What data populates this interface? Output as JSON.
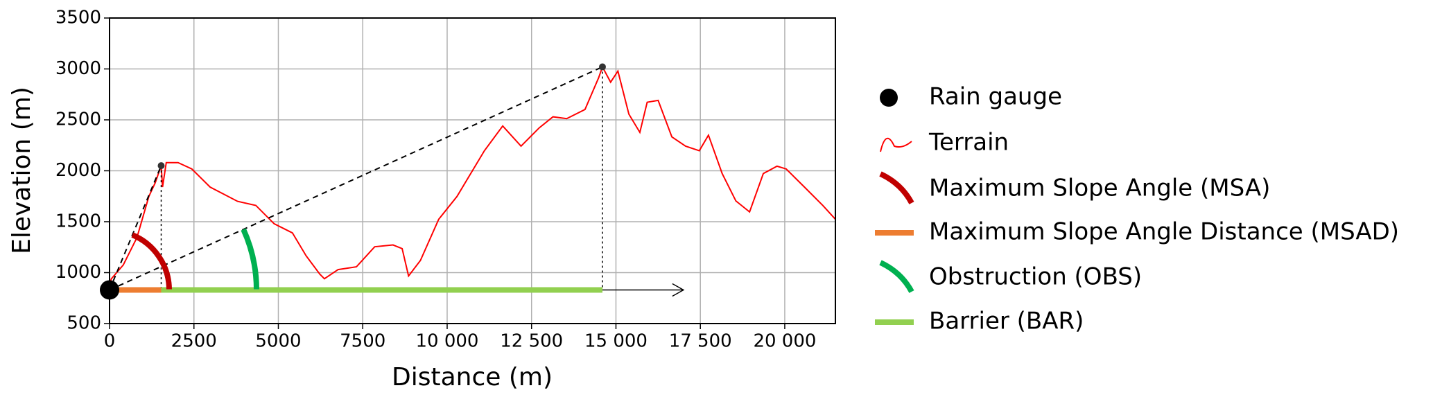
{
  "chart_data": {
    "type": "line",
    "xlabel": "Distance (m)",
    "ylabel": "Elevation (m)",
    "xlim": [
      0,
      21500
    ],
    "ylim": [
      500,
      3500
    ],
    "xticks": [
      0,
      2500,
      5000,
      7500,
      {
        "value": 10000,
        "label": "10 000"
      },
      {
        "value": 12500,
        "label": "12 500"
      },
      {
        "value": 15000,
        "label": "15 000"
      },
      {
        "value": 17500,
        "label": "17 500"
      },
      {
        "value": 20000,
        "label": "20 000"
      }
    ],
    "yticks": [
      500,
      1000,
      1500,
      2000,
      2500,
      3000,
      3500
    ],
    "grid": true,
    "legend": "right",
    "series": [
      {
        "name": "Terrain",
        "color": "#ff0000",
        "x": [
          0,
          54,
          406,
          812,
          1164,
          1354,
          1530,
          1570,
          1680,
          2030,
          2437,
          2979,
          3792,
          4333,
          4875,
          5417,
          5823,
          6229,
          6365,
          6770,
          7312,
          7854,
          8396,
          8667,
          8857,
          9209,
          9750,
          10292,
          10698,
          11104,
          11646,
          12188,
          12729,
          13135,
          13541,
          14083,
          14490,
          14600,
          14842,
          15058,
          15383,
          15708,
          15925,
          16250,
          16656,
          17063,
          17469,
          17740,
          18146,
          18552,
          18958,
          19365,
          19771,
          20042,
          20583,
          21125,
          21500
        ],
        "values": [
          880,
          940,
          1075,
          1344,
          1748,
          1883,
          2050,
          1840,
          2080,
          2080,
          2018,
          1840,
          1700,
          1660,
          1480,
          1390,
          1165,
          985,
          940,
          1030,
          1057,
          1254,
          1272,
          1236,
          967,
          1120,
          1524,
          1748,
          1973,
          2197,
          2440,
          2242,
          2422,
          2530,
          2512,
          2602,
          2916,
          3020,
          2870,
          2979,
          2556,
          2377,
          2673,
          2691,
          2333,
          2242,
          2197,
          2350,
          1973,
          1704,
          1596,
          1973,
          2045,
          2018,
          1840,
          1660,
          1524
        ]
      }
    ],
    "gauge": {
      "name": "Rain gauge",
      "color": "#000000",
      "x": 0,
      "y": 830
    },
    "msa": {
      "name": "Maximum Slope Angle (MSA)",
      "color": "#c00000",
      "x": 1530,
      "y": 2050
    },
    "msad": {
      "name": "Maximum Slope Angle Distance (MSAD)",
      "color": "#ed7d31"
    },
    "obs": {
      "name": "Obstruction (OBS)",
      "color": "#00b050",
      "x": 14600,
      "y": 3020
    },
    "bar": {
      "name": "Barrier (BAR)",
      "color": "#92d050"
    },
    "direction_arrow": {
      "x": 17000
    }
  }
}
